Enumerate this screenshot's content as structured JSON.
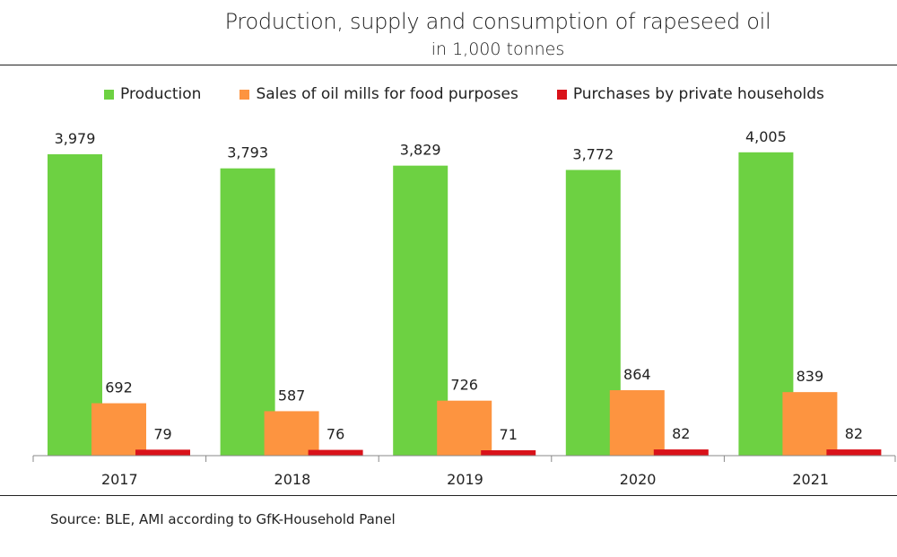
{
  "chart_data": {
    "type": "bar",
    "title": "Production, supply and consumption of rapeseed oil",
    "subtitle": "in 1,000 tonnes",
    "categories": [
      "2017",
      "2018",
      "2019",
      "2020",
      "2021"
    ],
    "series": [
      {
        "name": "Production",
        "color": "#6dd142",
        "values": [
          3979,
          3793,
          3829,
          3772,
          4005
        ],
        "labels": [
          "3,979",
          "3,793",
          "3,829",
          "3,772",
          "4,005"
        ]
      },
      {
        "name": "Sales of oil mills for food purposes",
        "color": "#fd9440",
        "values": [
          692,
          587,
          726,
          864,
          839
        ],
        "labels": [
          "692",
          "587",
          "726",
          "864",
          "839"
        ]
      },
      {
        "name": "Purchases by private households",
        "color": "#d9121a",
        "values": [
          79,
          76,
          71,
          82,
          82
        ],
        "labels": [
          "79",
          "76",
          "71",
          "82",
          "82"
        ]
      }
    ],
    "ylim": [
      0,
      4500
    ],
    "grid": false,
    "legend": "top"
  },
  "source": "Source: BLE, AMI according to GfK-Household Panel"
}
